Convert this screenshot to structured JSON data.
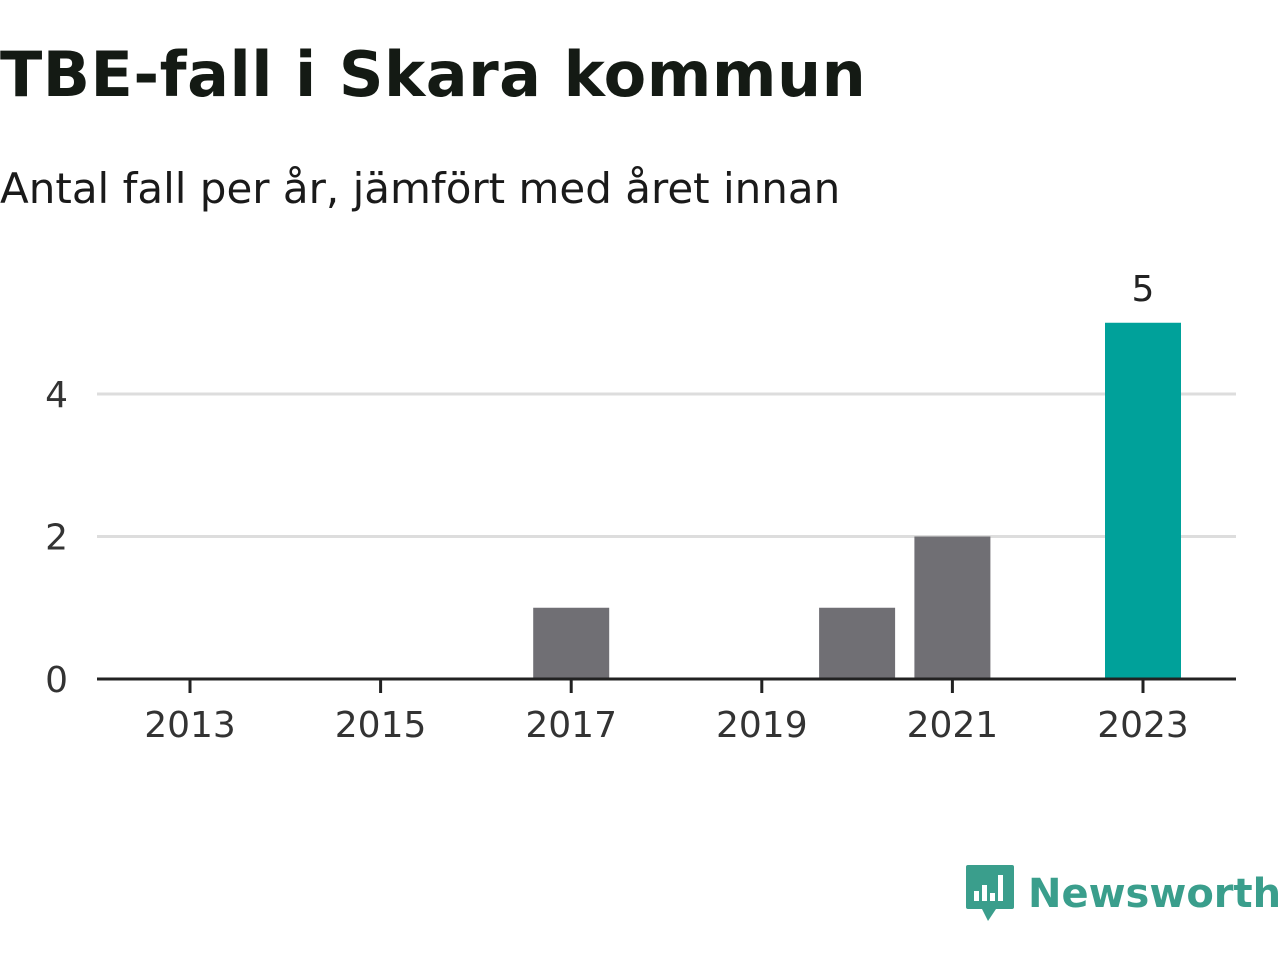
{
  "chart_data": {
    "type": "bar",
    "title": "TBE-fall i Skara kommun",
    "subtitle": "Antal fall per år, jämfört med året innan",
    "x": [
      2013,
      2014,
      2015,
      2016,
      2017,
      2018,
      2019,
      2020,
      2021,
      2022,
      2023
    ],
    "values": [
      0,
      0,
      0,
      0,
      1,
      0,
      0,
      1,
      2,
      0,
      5
    ],
    "x_ticks": [
      "2013",
      "2015",
      "2017",
      "2019",
      "2021",
      "2023"
    ],
    "y_ticks": [
      "0",
      "2",
      "4"
    ],
    "ylim": [
      0,
      5.5
    ],
    "grid": true,
    "data_labels": [
      {
        "x": 2023,
        "text": "5"
      }
    ],
    "colors": {
      "bar": "#706f74",
      "highlight": "#00a19a",
      "grid": "#dddddd",
      "axis": "#222222"
    },
    "highlight_x": 2023,
    "xlabel": "",
    "ylabel": ""
  },
  "brand": {
    "name": "Newsworthy",
    "logo_icon": "newsworthy-chart-bubble-icon",
    "color": "#3a9e8c"
  }
}
